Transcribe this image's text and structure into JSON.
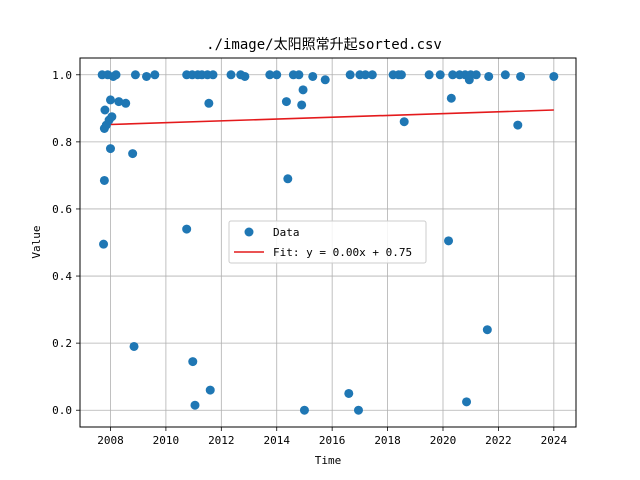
{
  "chart_data": {
    "type": "scatter",
    "title": "./image/太阳照常升起sorted.csv",
    "xlabel": "Time",
    "ylabel": "Value",
    "xlim": [
      2006.9,
      2024.8
    ],
    "ylim": [
      -0.05,
      1.05
    ],
    "xticks": [
      2008,
      2010,
      2012,
      2014,
      2016,
      2018,
      2020,
      2022,
      2024
    ],
    "yticks": [
      0.0,
      0.2,
      0.4,
      0.6,
      0.8,
      1.0
    ],
    "ytick_labels": [
      "0.0",
      "0.2",
      "0.4",
      "0.6",
      "0.8",
      "1.0"
    ],
    "grid": true,
    "legend_position": "center",
    "series": [
      {
        "name": "Data",
        "kind": "scatter",
        "color": "#1f77b4",
        "points": [
          [
            2007.7,
            1.0
          ],
          [
            2007.75,
            0.495
          ],
          [
            2007.78,
            0.685
          ],
          [
            2007.78,
            0.84
          ],
          [
            2007.8,
            0.895
          ],
          [
            2007.85,
            0.85
          ],
          [
            2007.9,
            1.0
          ],
          [
            2007.95,
            0.865
          ],
          [
            2008.0,
            0.925
          ],
          [
            2008.0,
            0.78
          ],
          [
            2008.05,
            0.875
          ],
          [
            2008.1,
            0.995
          ],
          [
            2008.2,
            1.0
          ],
          [
            2008.3,
            0.92
          ],
          [
            2008.55,
            0.915
          ],
          [
            2008.8,
            0.765
          ],
          [
            2008.85,
            0.19
          ],
          [
            2008.9,
            1.0
          ],
          [
            2009.3,
            0.995
          ],
          [
            2009.6,
            1.0
          ],
          [
            2010.75,
            1.0
          ],
          [
            2010.75,
            0.54
          ],
          [
            2010.95,
            1.0
          ],
          [
            2010.97,
            0.145
          ],
          [
            2011.05,
            0.015
          ],
          [
            2011.15,
            1.0
          ],
          [
            2011.3,
            1.0
          ],
          [
            2011.5,
            1.0
          ],
          [
            2011.55,
            0.915
          ],
          [
            2011.6,
            0.06
          ],
          [
            2011.7,
            1.0
          ],
          [
            2012.35,
            1.0
          ],
          [
            2012.7,
            1.0
          ],
          [
            2012.85,
            0.995
          ],
          [
            2013.75,
            1.0
          ],
          [
            2014.0,
            1.0
          ],
          [
            2014.35,
            0.92
          ],
          [
            2014.4,
            0.69
          ],
          [
            2014.6,
            1.0
          ],
          [
            2014.8,
            1.0
          ],
          [
            2014.9,
            0.91
          ],
          [
            2014.95,
            0.955
          ],
          [
            2015.0,
            0.0
          ],
          [
            2015.3,
            0.995
          ],
          [
            2015.75,
            0.985
          ],
          [
            2016.6,
            0.05
          ],
          [
            2016.65,
            1.0
          ],
          [
            2016.95,
            0.0
          ],
          [
            2017.0,
            1.0
          ],
          [
            2017.2,
            1.0
          ],
          [
            2017.45,
            1.0
          ],
          [
            2018.2,
            1.0
          ],
          [
            2018.4,
            1.0
          ],
          [
            2018.5,
            1.0
          ],
          [
            2018.6,
            0.86
          ],
          [
            2019.5,
            1.0
          ],
          [
            2019.9,
            1.0
          ],
          [
            2020.2,
            0.505
          ],
          [
            2020.3,
            0.93
          ],
          [
            2020.35,
            1.0
          ],
          [
            2020.6,
            1.0
          ],
          [
            2020.8,
            1.0
          ],
          [
            2020.85,
            0.025
          ],
          [
            2020.95,
            0.985
          ],
          [
            2021.0,
            1.0
          ],
          [
            2021.2,
            1.0
          ],
          [
            2021.6,
            0.24
          ],
          [
            2021.65,
            0.995
          ],
          [
            2022.25,
            1.0
          ],
          [
            2022.7,
            0.85
          ],
          [
            2022.8,
            0.995
          ],
          [
            2024.0,
            0.995
          ]
        ]
      },
      {
        "name": "Fit: y = 0.00x + 0.75",
        "kind": "line",
        "color": "#e41a1c",
        "x": [
          2007.7,
          2024.0
        ],
        "y": [
          0.851,
          0.895
        ]
      }
    ]
  }
}
